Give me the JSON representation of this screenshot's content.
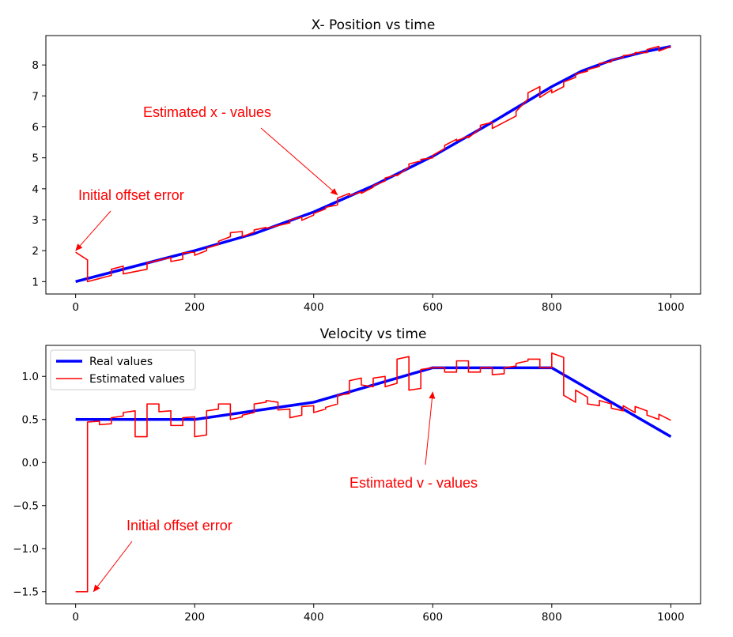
{
  "chart_data": [
    {
      "type": "line",
      "title": "X- Position vs time",
      "xlabel": "",
      "ylabel": "",
      "xlim": [
        -50,
        1050
      ],
      "ylim": [
        0.6,
        8.95
      ],
      "xticks": [
        0,
        200,
        400,
        600,
        800,
        1000
      ],
      "yticks": [
        1,
        2,
        3,
        4,
        5,
        6,
        7,
        8
      ],
      "xtick_labels": [
        "0",
        "200",
        "400",
        "600",
        "800",
        "1000"
      ],
      "ytick_labels": [
        "1",
        "2",
        "3",
        "4",
        "5",
        "6",
        "7",
        "8"
      ],
      "grid": false,
      "series": [
        {
          "color": "#0000ff",
          "line_width": "thick",
          "x": [
            0,
            100,
            200,
            300,
            400,
            500,
            600,
            700,
            800,
            850,
            900,
            950,
            1000
          ],
          "y": [
            1.0,
            1.5,
            2.0,
            2.55,
            3.25,
            4.1,
            5.05,
            6.15,
            7.3,
            7.8,
            8.15,
            8.4,
            8.6
          ]
        },
        {
          "color": "#ff0000",
          "line_width": "thin",
          "x": [
            0,
            20,
            20,
            40,
            60,
            60,
            80,
            80,
            120,
            120,
            160,
            160,
            180,
            180,
            200,
            200,
            220,
            220,
            240,
            240,
            260,
            260,
            280,
            280,
            300,
            300,
            320,
            320,
            360,
            360,
            380,
            380,
            400,
            400,
            420,
            420,
            440,
            440,
            460,
            460,
            480,
            480,
            500,
            500,
            520,
            520,
            540,
            540,
            560,
            560,
            580,
            580,
            600,
            600,
            620,
            620,
            640,
            640,
            660,
            660,
            680,
            680,
            700,
            700,
            740,
            740,
            760,
            760,
            780,
            780,
            800,
            800,
            820,
            820,
            840,
            840,
            860,
            860,
            880,
            880,
            900,
            900,
            920,
            920,
            940,
            940,
            960,
            960,
            980,
            980,
            1000
          ],
          "y": [
            1.95,
            1.7,
            1.0,
            1.1,
            1.2,
            1.4,
            1.5,
            1.25,
            1.4,
            1.6,
            1.78,
            1.65,
            1.72,
            1.93,
            1.95,
            1.85,
            2.0,
            2.08,
            2.2,
            2.3,
            2.45,
            2.58,
            2.62,
            2.45,
            2.6,
            2.67,
            2.75,
            2.72,
            2.9,
            3.0,
            3.08,
            2.98,
            3.15,
            3.2,
            3.35,
            3.4,
            3.48,
            3.7,
            3.85,
            3.78,
            3.9,
            3.85,
            4.05,
            4.1,
            4.25,
            4.35,
            4.45,
            4.42,
            4.7,
            4.8,
            4.9,
            4.95,
            5.0,
            5.08,
            5.3,
            5.4,
            5.6,
            5.55,
            5.7,
            5.65,
            5.95,
            6.05,
            6.15,
            5.95,
            6.35,
            6.5,
            6.9,
            7.1,
            7.3,
            6.95,
            7.2,
            7.1,
            7.3,
            7.45,
            7.6,
            7.7,
            7.8,
            7.85,
            7.95,
            8.05,
            8.1,
            8.15,
            8.25,
            8.3,
            8.35,
            8.4,
            8.4,
            8.5,
            8.6,
            8.45,
            8.6
          ]
        }
      ],
      "annotations": [
        {
          "text": "Estimated x - values",
          "x": 440,
          "y": 3.8
        },
        {
          "text": "Initial offset error",
          "x": 0,
          "y": 2.0
        }
      ]
    },
    {
      "type": "line",
      "title": "Velocity vs time",
      "xlabel": "",
      "ylabel": "",
      "xlim": [
        -50,
        1050
      ],
      "ylim": [
        -1.64,
        1.36
      ],
      "xticks": [
        0,
        200,
        400,
        600,
        800,
        1000
      ],
      "yticks": [
        1.0,
        0.5,
        0.0,
        -0.5,
        -1.0,
        -1.5
      ],
      "xtick_labels": [
        "0",
        "200",
        "400",
        "600",
        "800",
        "1000"
      ],
      "ytick_labels": [
        "1.0",
        "0.5",
        "0.0",
        "−0.5",
        "−1.0",
        "−1.5"
      ],
      "grid": false,
      "legend_position": "top-left",
      "series": [
        {
          "name": "Real values",
          "color": "#0000ff",
          "line_width": "thick",
          "x": [
            0,
            200,
            400,
            600,
            800,
            1000
          ],
          "y": [
            0.5,
            0.5,
            0.7,
            1.1,
            1.1,
            0.3
          ]
        },
        {
          "name": "Estimated values",
          "color": "#ff0000",
          "line_width": "thin",
          "x": [
            0,
            20,
            20,
            40,
            40,
            60,
            60,
            80,
            80,
            100,
            100,
            120,
            120,
            140,
            140,
            160,
            160,
            180,
            180,
            200,
            200,
            220,
            220,
            240,
            240,
            260,
            260,
            280,
            280,
            300,
            300,
            320,
            320,
            340,
            340,
            360,
            360,
            380,
            380,
            400,
            400,
            420,
            420,
            440,
            440,
            460,
            460,
            480,
            480,
            500,
            500,
            520,
            520,
            540,
            540,
            560,
            560,
            580,
            580,
            600,
            600,
            620,
            620,
            640,
            640,
            660,
            660,
            680,
            680,
            700,
            700,
            720,
            720,
            740,
            740,
            760,
            760,
            780,
            780,
            800,
            800,
            820,
            820,
            840,
            840,
            860,
            860,
            880,
            880,
            900,
            900,
            920,
            920,
            940,
            940,
            960,
            960,
            980,
            980,
            1000
          ],
          "y": [
            -1.5,
            -1.5,
            0.47,
            0.48,
            0.44,
            0.45,
            0.52,
            0.54,
            0.58,
            0.6,
            0.3,
            0.3,
            0.68,
            0.68,
            0.59,
            0.6,
            0.43,
            0.43,
            0.52,
            0.53,
            0.3,
            0.32,
            0.6,
            0.62,
            0.68,
            0.68,
            0.5,
            0.53,
            0.55,
            0.58,
            0.68,
            0.7,
            0.72,
            0.7,
            0.61,
            0.62,
            0.52,
            0.55,
            0.65,
            0.66,
            0.58,
            0.62,
            0.64,
            0.68,
            0.78,
            0.8,
            0.95,
            0.98,
            0.9,
            0.88,
            0.98,
            1.0,
            0.88,
            0.92,
            1.2,
            1.23,
            0.84,
            0.86,
            1.08,
            1.1,
            1.1,
            1.1,
            1.05,
            1.05,
            1.18,
            1.18,
            1.05,
            1.05,
            1.1,
            1.1,
            1.02,
            1.03,
            1.1,
            1.12,
            1.15,
            1.18,
            1.2,
            1.2,
            1.1,
            1.1,
            1.27,
            1.22,
            0.78,
            0.7,
            0.84,
            0.76,
            0.68,
            0.66,
            0.72,
            0.68,
            0.63,
            0.6,
            0.66,
            0.58,
            0.65,
            0.6,
            0.55,
            0.5,
            0.56,
            0.49
          ]
        }
      ],
      "annotations": [
        {
          "text": "Estimated v - values",
          "x": 600,
          "y": 0.82
        },
        {
          "text": "Initial offset error",
          "x": 30,
          "y": -1.5
        }
      ]
    }
  ]
}
